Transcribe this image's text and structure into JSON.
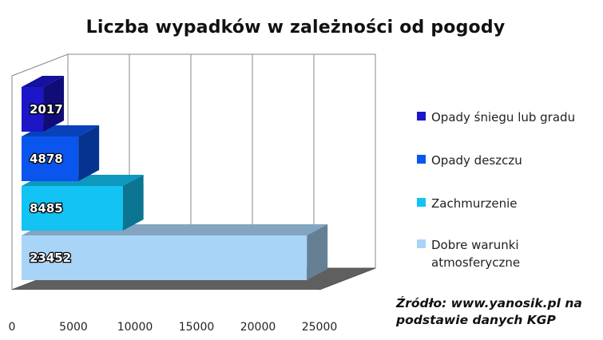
{
  "chart_data": {
    "type": "bar",
    "orientation": "horizontal",
    "title": "Liczba wypadków w zależności od pogody",
    "categories": [
      "Dobre warunki atmosferyczne",
      "Zachmurzenie",
      "Opady deszczu",
      "Opady śniegu lub gradu"
    ],
    "values": [
      23452,
      8485,
      4878,
      2017
    ],
    "data_labels": [
      "23452",
      "8485",
      "4878",
      "2017"
    ],
    "colors": [
      "#a8d4f8",
      "#12c3f4",
      "#0a55ee",
      "#1c16c8"
    ],
    "xlim": [
      0,
      25000
    ],
    "x_ticks": [
      "0",
      "5000",
      "10000",
      "15000",
      "20000",
      "25000"
    ],
    "grid": true,
    "legend_position": "right",
    "legend": [
      {
        "label": "Opady śniegu lub gradu",
        "color": "#1c16c8"
      },
      {
        "label": "Opady deszczu",
        "color": "#0a55ee"
      },
      {
        "label": "Zachmurzenie",
        "color": "#12c3f4"
      },
      {
        "label": "Dobre warunki atmosferyczne",
        "color": "#a8d4f8"
      }
    ]
  },
  "source_note": "Źródło: www.yanosik.pl na podstawie danych KGP"
}
